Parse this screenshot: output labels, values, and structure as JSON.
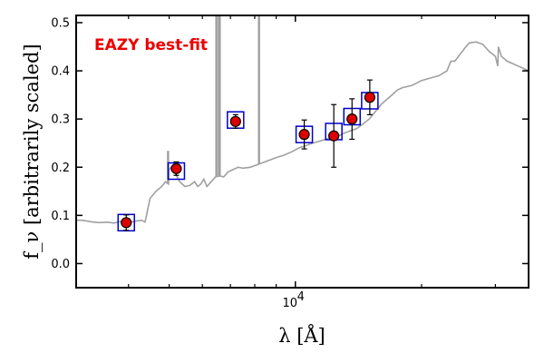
{
  "chart_data": {
    "type": "scatter",
    "title": "",
    "annotation": "EAZY best-fit",
    "xlabel": "λ [Å]",
    "ylabel": "f_ν [arbitrarily scaled]",
    "x_scale": "log",
    "xlim": [
      3000,
      36000
    ],
    "ylim": [
      -0.05,
      0.515
    ],
    "y_ticks": [
      0.0,
      0.1,
      0.2,
      0.3,
      0.4,
      0.5
    ],
    "y_tick_labels": [
      "0.0",
      "0.1",
      "0.2",
      "0.3",
      "0.4",
      "0.5"
    ],
    "x_major_tick": {
      "value": 10000,
      "label_base": "10",
      "label_exp": "4"
    },
    "x_minor_ticks": [
      4000,
      5000,
      6000,
      7000,
      8000,
      9000,
      20000,
      30000
    ],
    "grid": false,
    "series": [
      {
        "name": "",
        "kind": "model-spectrum",
        "color": "#a0a0a0",
        "x": [
          3000,
          3100,
          3250,
          3400,
          3550,
          3700,
          3850,
          4000,
          4150,
          4300,
          4380,
          4420,
          4500,
          4650,
          4800,
          4900,
          4980,
          5000,
          5050,
          5150,
          5300,
          5450,
          5600,
          5750,
          5850,
          5950,
          6050,
          6150,
          6300,
          6450,
          6600,
          6750,
          6900,
          7100,
          7300,
          7500,
          7800,
          8100,
          8400,
          8700,
          9000,
          9400,
          9800,
          10200,
          10600,
          11000,
          11500,
          12000,
          12500,
          13000,
          13500,
          14000,
          14500,
          15000,
          15500,
          16000,
          16500,
          17000,
          17500,
          18000,
          19000,
          20000,
          21000,
          22000,
          23000,
          23500,
          24000,
          24500,
          25000,
          25500,
          26000,
          27000,
          28000,
          29000,
          30000,
          30400,
          30500,
          31000,
          32000,
          33000,
          34000,
          35000,
          36000
        ],
        "y": [
          0.09,
          0.09,
          0.087,
          0.085,
          0.086,
          0.084,
          0.088,
          0.085,
          0.088,
          0.09,
          0.086,
          0.102,
          0.135,
          0.15,
          0.16,
          0.17,
          0.165,
          0.195,
          0.2,
          0.19,
          0.17,
          0.16,
          0.162,
          0.17,
          0.16,
          0.165,
          0.175,
          0.16,
          0.17,
          0.18,
          0.182,
          0.18,
          0.19,
          0.195,
          0.2,
          0.198,
          0.2,
          0.205,
          0.21,
          0.215,
          0.22,
          0.225,
          0.232,
          0.24,
          0.245,
          0.25,
          0.255,
          0.26,
          0.262,
          0.27,
          0.275,
          0.28,
          0.29,
          0.3,
          0.315,
          0.33,
          0.34,
          0.35,
          0.36,
          0.365,
          0.37,
          0.38,
          0.385,
          0.39,
          0.4,
          0.42,
          0.42,
          0.43,
          0.44,
          0.45,
          0.458,
          0.46,
          0.455,
          0.44,
          0.43,
          0.41,
          0.45,
          0.43,
          0.42,
          0.415,
          0.41,
          0.405,
          0.4
        ]
      },
      {
        "name": "",
        "kind": "model-spectrum-emission-lines",
        "color": "#a0a0a0",
        "x": [
          4970,
          6480,
          6570,
          6600,
          8190
        ],
        "y": [
          0.234,
          0.52,
          0.52,
          0.52,
          0.52
        ]
      },
      {
        "name": "",
        "kind": "model-photometry",
        "color": "#0000cc",
        "x": [
          3950,
          5200,
          7200,
          10500,
          12350,
          13650,
          15050
        ],
        "y": [
          0.085,
          0.192,
          0.298,
          0.268,
          0.274,
          0.305,
          0.338
        ]
      },
      {
        "name": "",
        "kind": "observed-photometry",
        "color": "#dd0000",
        "x": [
          3950,
          5200,
          7200,
          10500,
          12350,
          13650,
          15050
        ],
        "y": [
          0.085,
          0.197,
          0.295,
          0.268,
          0.265,
          0.3,
          0.345
        ],
        "yerr": [
          0.016,
          0.014,
          0.014,
          0.03,
          0.065,
          0.042,
          0.036
        ]
      }
    ]
  }
}
